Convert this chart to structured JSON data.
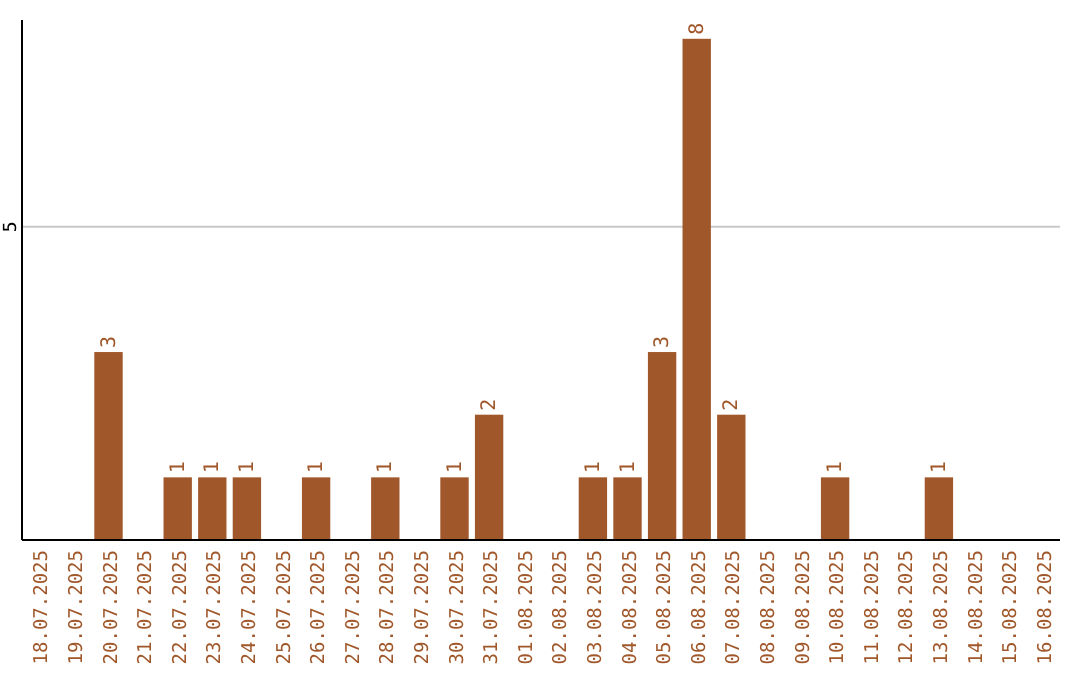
{
  "chart_data": {
    "type": "bar",
    "categories": [
      "18.07.2025",
      "19.07.2025",
      "20.07.2025",
      "21.07.2025",
      "22.07.2025",
      "23.07.2025",
      "24.07.2025",
      "25.07.2025",
      "26.07.2025",
      "27.07.2025",
      "28.07.2025",
      "29.07.2025",
      "30.07.2025",
      "31.07.2025",
      "01.08.2025",
      "02.08.2025",
      "03.08.2025",
      "04.08.2025",
      "05.08.2025",
      "06.08.2025",
      "07.08.2025",
      "08.08.2025",
      "09.08.2025",
      "10.08.2025",
      "11.08.2025",
      "12.08.2025",
      "13.08.2025",
      "14.08.2025",
      "15.08.2025",
      "16.08.2025"
    ],
    "values": [
      0,
      0,
      3,
      0,
      1,
      1,
      1,
      0,
      1,
      0,
      1,
      0,
      1,
      2,
      0,
      0,
      1,
      1,
      3,
      8,
      2,
      0,
      0,
      1,
      0,
      0,
      1,
      0,
      0,
      0
    ],
    "value_labels": [
      null,
      null,
      "3",
      null,
      "1",
      "1",
      "1",
      null,
      "1",
      null,
      "1",
      null,
      "1",
      "2",
      null,
      null,
      "1",
      "1",
      "3",
      "8",
      "2",
      null,
      null,
      "1",
      null,
      null,
      "1",
      null,
      null,
      null
    ],
    "color": "#a0572a",
    "ylim": [
      0,
      8.3
    ],
    "yticks": [
      5
    ],
    "grid": "y"
  }
}
